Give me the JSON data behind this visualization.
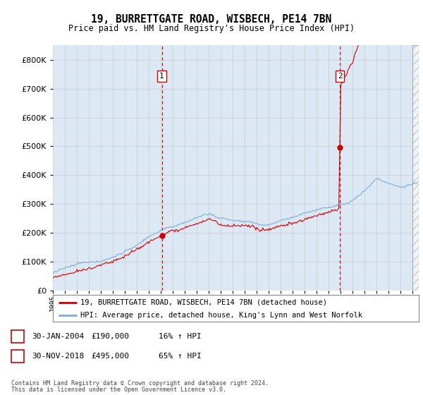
{
  "title": "19, BURRETTGATE ROAD, WISBECH, PE14 7BN",
  "subtitle": "Price paid vs. HM Land Registry's House Price Index (HPI)",
  "legend_line1": "19, BURRETTGATE ROAD, WISBECH, PE14 7BN (detached house)",
  "legend_line2": "HPI: Average price, detached house, King's Lynn and West Norfolk",
  "annotation1_date": "30-JAN-2004",
  "annotation1_price": "£190,000",
  "annotation1_hpi": "16% ↑ HPI",
  "annotation2_date": "30-NOV-2018",
  "annotation2_price": "£495,000",
  "annotation2_hpi": "65% ↑ HPI",
  "footer1": "Contains HM Land Registry data © Crown copyright and database right 2024.",
  "footer2": "This data is licensed under the Open Government Licence v3.0.",
  "hpi_color": "#7eaed4",
  "price_color": "#cc0000",
  "bg_color": "#dce9f5",
  "plot_bg": "#ffffff",
  "ylim": [
    0,
    850000
  ],
  "yticks": [
    0,
    100000,
    200000,
    300000,
    400000,
    500000,
    600000,
    700000,
    800000
  ],
  "sale1_x": 2004.08,
  "sale1_y": 190000,
  "sale2_x": 2018.92,
  "sale2_y": 495000,
  "xmin": 1995,
  "xmax": 2025.5
}
